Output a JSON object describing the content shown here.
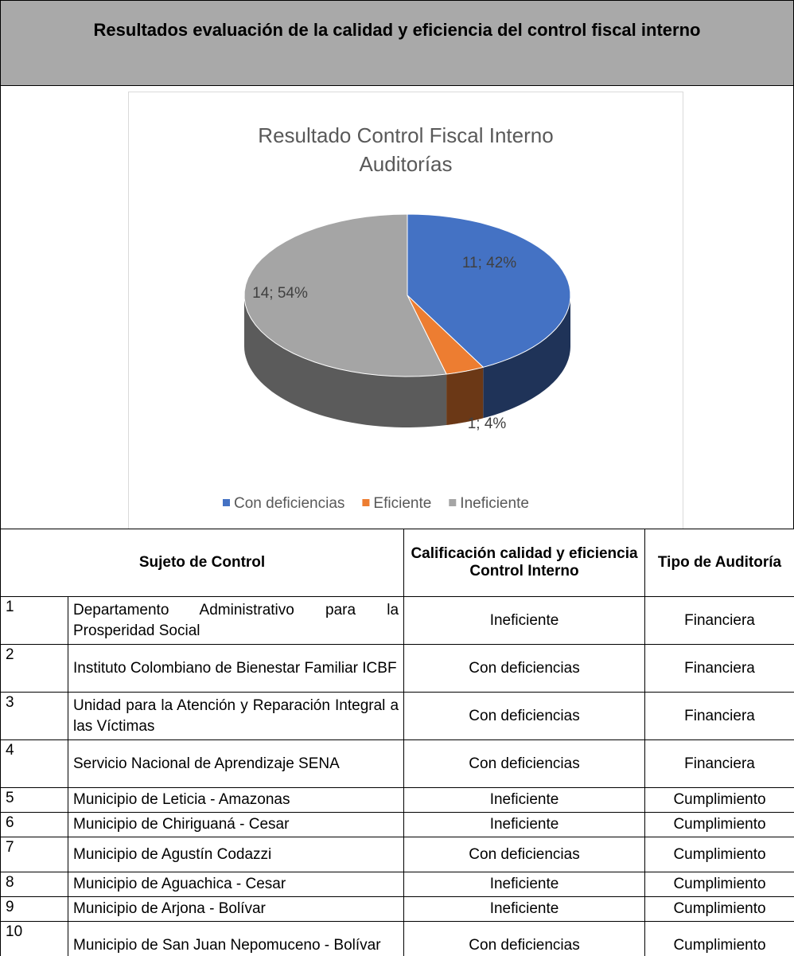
{
  "header": {
    "title": "Resultados evaluación de la calidad y eficiencia del control fiscal interno"
  },
  "chart_data": {
    "type": "pie",
    "title": "Resultado Control Fiscal Interno Auditorías",
    "categories": [
      "Con deficiencias",
      "Eficiente",
      "Ineficiente"
    ],
    "values": [
      11,
      1,
      14
    ],
    "value_labels": [
      "11; 42%",
      "1; 4%",
      "14; 54%"
    ],
    "colors": [
      "#4472c4",
      "#ed7d31",
      "#a5a5a5"
    ]
  },
  "table": {
    "columns": [
      "Sujeto de Control",
      "Calificación calidad y eficiencia Control Interno",
      "Tipo de Auditoría"
    ],
    "rows": [
      [
        1,
        "Departamento Administrativo para la Prosperidad Social",
        "Ineficiente",
        "Financiera"
      ],
      [
        2,
        "Instituto Colombiano de Bienestar Familiar ICBF",
        "Con deficiencias",
        "Financiera"
      ],
      [
        3,
        "Unidad para la Atención y Reparación Integral a las Víctimas",
        "Con deficiencias",
        "Financiera"
      ],
      [
        4,
        "Servicio Nacional de Aprendizaje SENA",
        "Con deficiencias",
        "Financiera"
      ],
      [
        5,
        "Municipio de Leticia - Amazonas",
        "Ineficiente",
        "Cumplimiento"
      ],
      [
        6,
        "Municipio de Chiriguaná - Cesar",
        "Ineficiente",
        "Cumplimiento"
      ],
      [
        7,
        "Municipio de Agustín Codazzi",
        "Con deficiencias",
        "Cumplimiento"
      ],
      [
        8,
        "Municipio de Aguachica - Cesar",
        "Ineficiente",
        "Cumplimiento"
      ],
      [
        9,
        "Municipio de Arjona - Bolívar",
        "Ineficiente",
        "Cumplimiento"
      ],
      [
        10,
        "Municipio de San Juan Nepomuceno - Bolívar",
        "Con deficiencias",
        "Cumplimiento"
      ]
    ]
  }
}
